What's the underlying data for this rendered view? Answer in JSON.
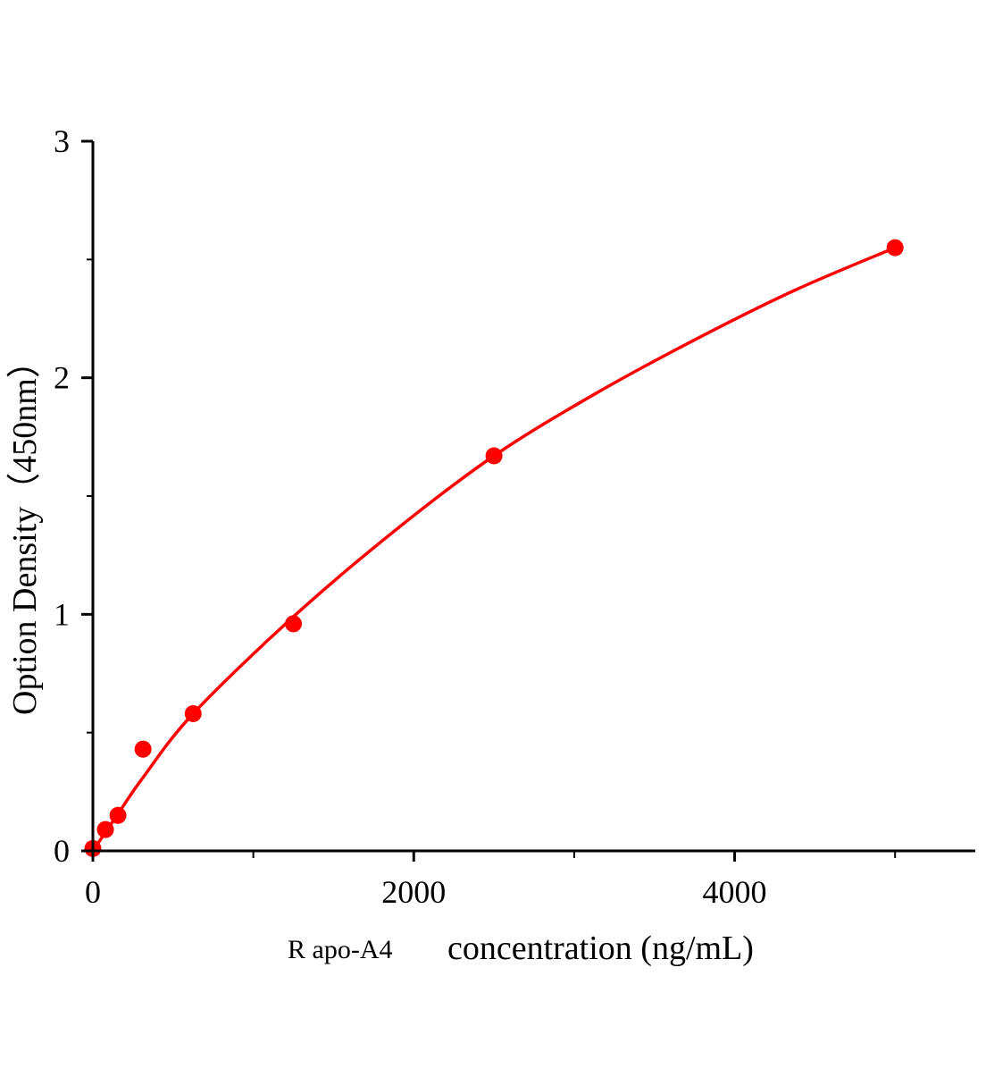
{
  "chart_data": {
    "type": "scatter",
    "title": "",
    "xlabel_prefix": "R apo-A4",
    "xlabel": "concentration (ng/mL)",
    "ylabel": "Option Density（450nm）",
    "xlim": [
      0,
      5500
    ],
    "ylim": [
      0,
      3
    ],
    "x_ticks": [
      "0",
      "2000",
      "4000"
    ],
    "x_tick_values": [
      0,
      2000,
      4000
    ],
    "x_minor_ticks": [
      1000,
      3000,
      5000
    ],
    "y_ticks": [
      "0",
      "1",
      "2",
      "3"
    ],
    "y_tick_values": [
      0,
      1,
      2,
      3
    ],
    "y_minor_ticks": [
      0.5,
      1.5,
      2.5
    ],
    "grid": false,
    "color": "#ff0000",
    "points": {
      "x": [
        0,
        78.125,
        156.25,
        312.5,
        625,
        1250,
        2500,
        5000
      ],
      "y": [
        0.01,
        0.09,
        0.15,
        0.43,
        0.58,
        0.96,
        1.67,
        2.55
      ]
    },
    "fit_curve": {
      "x": [
        0,
        150,
        312.5,
        625,
        1250,
        1875,
        2500,
        3125,
        3750,
        4375,
        5000
      ],
      "y": [
        0,
        0.15,
        0.31,
        0.58,
        0.99,
        1.35,
        1.67,
        1.93,
        2.16,
        2.37,
        2.55
      ]
    }
  }
}
